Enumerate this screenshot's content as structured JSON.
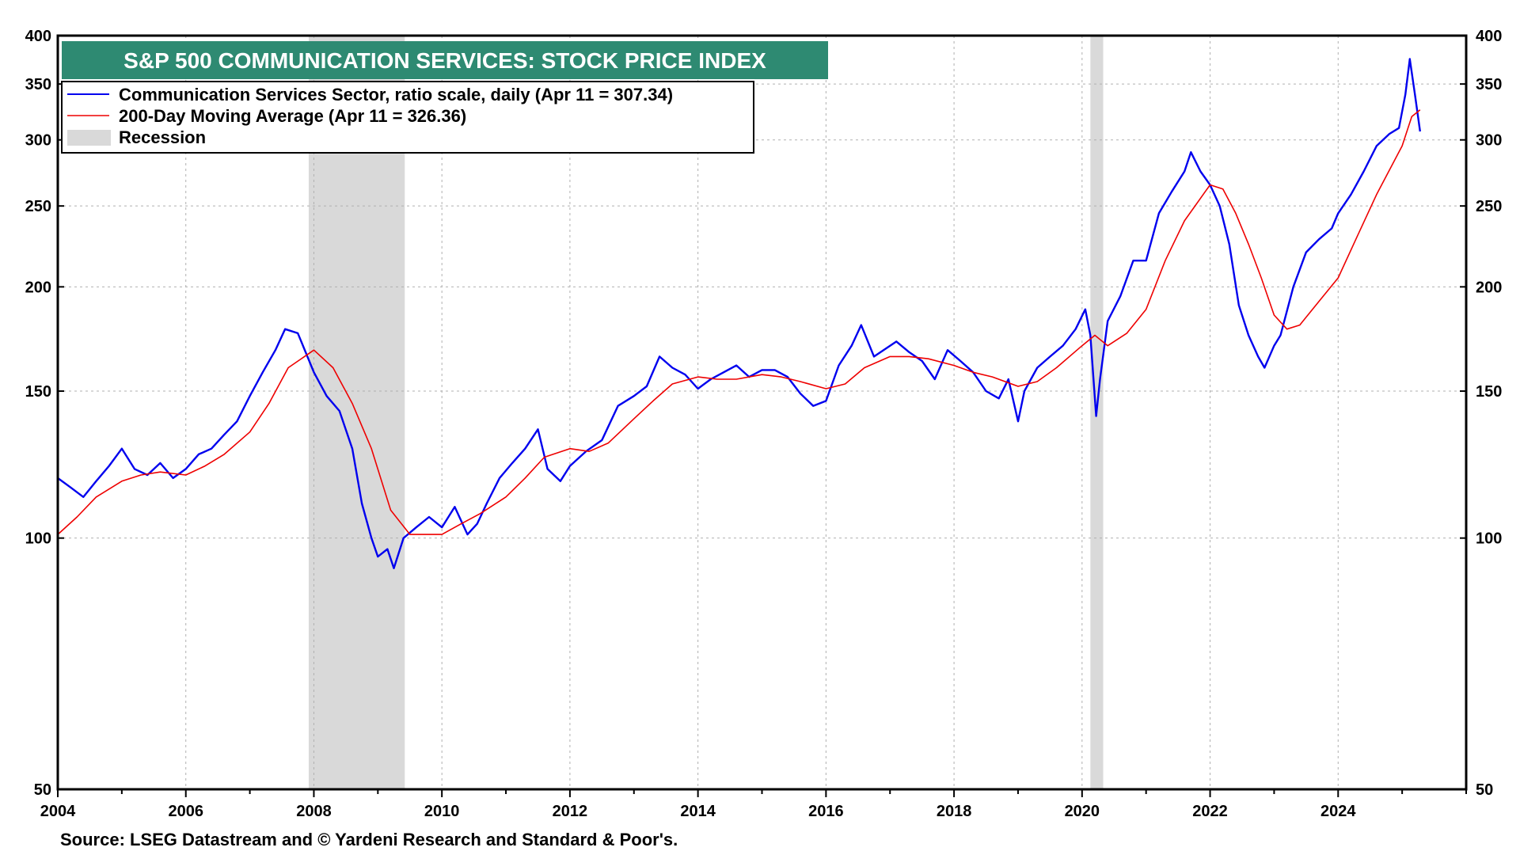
{
  "chart_data": {
    "type": "line",
    "title": "S&P 500 COMMUNICATION SERVICES: STOCK PRICE INDEX",
    "source": "Source: LSEG Datastream and © Yardeni Research and Standard & Poor's.",
    "y_scale": "log",
    "ylim": [
      50,
      400
    ],
    "xlim": [
      2004,
      2026
    ],
    "y_ticks": [
      50,
      100,
      150,
      200,
      250,
      300,
      350,
      400
    ],
    "y_tick_labels": [
      "50",
      "100",
      "150",
      "200",
      "250",
      "300",
      "350",
      "400"
    ],
    "x_ticks": [
      2004,
      2006,
      2008,
      2010,
      2012,
      2014,
      2016,
      2018,
      2020,
      2022,
      2024
    ],
    "x_tick_labels": [
      "2004",
      "2006",
      "2008",
      "2010",
      "2012",
      "2014",
      "2016",
      "2018",
      "2020",
      "2022",
      "2024"
    ],
    "grid": true,
    "legend": {
      "position": "top-left",
      "entries": [
        {
          "label": "Communication Services Sector, ratio scale, daily (Apr 11 = 307.34)",
          "kind": "line"
        },
        {
          "label": "200-Day Moving Average (Apr 11 = 326.36)",
          "kind": "line"
        },
        {
          "label": "Recession",
          "kind": "band"
        }
      ]
    },
    "recessions": [
      {
        "start": 2007.92,
        "end": 2009.42
      },
      {
        "start": 2020.13,
        "end": 2020.33
      }
    ],
    "series": [
      {
        "name": "Communication Services Sector",
        "color": "#0000ee",
        "x": [
          2004.0,
          2004.2,
          2004.4,
          2004.6,
          2004.8,
          2005.0,
          2005.2,
          2005.4,
          2005.6,
          2005.8,
          2006.0,
          2006.2,
          2006.4,
          2006.6,
          2006.8,
          2007.0,
          2007.2,
          2007.4,
          2007.55,
          2007.75,
          2008.0,
          2008.2,
          2008.4,
          2008.6,
          2008.75,
          2008.9,
          2009.0,
          2009.15,
          2009.25,
          2009.4,
          2009.6,
          2009.8,
          2010.0,
          2010.2,
          2010.4,
          2010.55,
          2010.7,
          2010.9,
          2011.1,
          2011.3,
          2011.5,
          2011.65,
          2011.85,
          2012.0,
          2012.25,
          2012.5,
          2012.75,
          2013.0,
          2013.2,
          2013.4,
          2013.6,
          2013.8,
          2014.0,
          2014.2,
          2014.4,
          2014.6,
          2014.8,
          2015.0,
          2015.2,
          2015.4,
          2015.6,
          2015.8,
          2016.0,
          2016.2,
          2016.4,
          2016.55,
          2016.75,
          2016.9,
          2017.1,
          2017.3,
          2017.5,
          2017.7,
          2017.9,
          2018.1,
          2018.3,
          2018.5,
          2018.7,
          2018.85,
          2019.0,
          2019.1,
          2019.3,
          2019.5,
          2019.7,
          2019.9,
          2020.05,
          2020.13,
          2020.22,
          2020.28,
          2020.4,
          2020.6,
          2020.8,
          2021.0,
          2021.2,
          2021.4,
          2021.6,
          2021.7,
          2021.85,
          2022.0,
          2022.15,
          2022.3,
          2022.45,
          2022.6,
          2022.75,
          2022.85,
          2023.0,
          2023.1,
          2023.3,
          2023.5,
          2023.7,
          2023.9,
          2024.0,
          2024.2,
          2024.4,
          2024.6,
          2024.8,
          2024.95,
          2025.05,
          2025.12,
          2025.2,
          2025.28
        ],
        "values": [
          118,
          115,
          112,
          117,
          122,
          128,
          121,
          119,
          123,
          118,
          121,
          126,
          128,
          133,
          138,
          148,
          158,
          168,
          178,
          176,
          158,
          148,
          142,
          128,
          110,
          100,
          95,
          97,
          92,
          100,
          103,
          106,
          103,
          109,
          101,
          104,
          110,
          118,
          123,
          128,
          135,
          121,
          117,
          122,
          127,
          131,
          144,
          148,
          152,
          165,
          160,
          157,
          151,
          155,
          158,
          161,
          156,
          159,
          159,
          156,
          149,
          144,
          146,
          161,
          170,
          180,
          165,
          168,
          172,
          167,
          163,
          155,
          168,
          163,
          158,
          150,
          147,
          155,
          138,
          150,
          160,
          165,
          170,
          178,
          188,
          175,
          140,
          155,
          182,
          195,
          215,
          215,
          245,
          260,
          275,
          290,
          275,
          265,
          250,
          225,
          190,
          175,
          165,
          160,
          170,
          175,
          200,
          220,
          228,
          235,
          245,
          258,
          275,
          295,
          305,
          310,
          340,
          375,
          340,
          307
        ]
      },
      {
        "name": "200-Day Moving Average",
        "color": "#ee0000",
        "x": [
          2004.0,
          2004.3,
          2004.6,
          2005.0,
          2005.3,
          2005.6,
          2006.0,
          2006.3,
          2006.6,
          2007.0,
          2007.3,
          2007.6,
          2008.0,
          2008.3,
          2008.6,
          2008.9,
          2009.2,
          2009.5,
          2009.8,
          2010.0,
          2010.3,
          2010.6,
          2011.0,
          2011.3,
          2011.6,
          2012.0,
          2012.3,
          2012.6,
          2013.0,
          2013.3,
          2013.6,
          2014.0,
          2014.3,
          2014.6,
          2015.0,
          2015.3,
          2015.6,
          2016.0,
          2016.3,
          2016.6,
          2017.0,
          2017.3,
          2017.6,
          2018.0,
          2018.3,
          2018.6,
          2019.0,
          2019.3,
          2019.6,
          2020.0,
          2020.2,
          2020.4,
          2020.7,
          2021.0,
          2021.3,
          2021.6,
          2022.0,
          2022.2,
          2022.4,
          2022.6,
          2022.8,
          2023.0,
          2023.2,
          2023.4,
          2023.6,
          2024.0,
          2024.3,
          2024.6,
          2025.0,
          2025.15,
          2025.28
        ],
        "values": [
          101,
          106,
          112,
          117,
          119,
          120,
          119,
          122,
          126,
          134,
          145,
          160,
          168,
          160,
          145,
          128,
          108,
          101,
          101,
          101,
          104,
          107,
          112,
          118,
          125,
          128,
          127,
          130,
          139,
          146,
          153,
          156,
          155,
          155,
          157,
          156,
          154,
          151,
          153,
          160,
          165,
          165,
          164,
          161,
          158,
          156,
          152,
          154,
          160,
          170,
          175,
          170,
          176,
          188,
          215,
          240,
          265,
          262,
          245,
          225,
          205,
          185,
          178,
          180,
          188,
          205,
          230,
          258,
          295,
          320,
          326
        ]
      }
    ]
  }
}
